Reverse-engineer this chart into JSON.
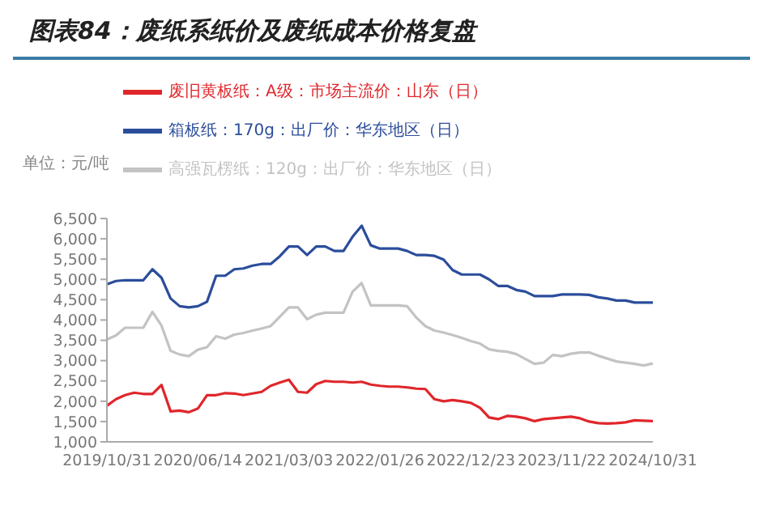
{
  "chart_data": {
    "type": "line",
    "title": "图表84：废纸系纸价及废纸成本价格复盘",
    "ylabel": "单位：元/吨",
    "categories": [
      "2019/10/31",
      null,
      null,
      null,
      null,
      null,
      null,
      null,
      null,
      null,
      "2020/06/14",
      null,
      null,
      null,
      null,
      null,
      null,
      null,
      null,
      null,
      "2021/03/03",
      null,
      null,
      null,
      null,
      null,
      null,
      null,
      null,
      null,
      "2022/01/26",
      null,
      null,
      null,
      null,
      null,
      null,
      null,
      null,
      null,
      "2022/12/23",
      null,
      null,
      null,
      null,
      null,
      null,
      null,
      null,
      null,
      "2023/11/22",
      null,
      null,
      null,
      null,
      null,
      null,
      null,
      null,
      null,
      "2024/10/31"
    ],
    "series": [
      {
        "name": "废旧黄板纸：A级：市场主流价：山东（日）",
        "color": "#e0262b",
        "values": [
          1890,
          2050,
          2150,
          2210,
          2180,
          2180,
          2400,
          1750,
          1770,
          1730,
          1820,
          2150,
          2150,
          2200,
          2190,
          2150,
          2190,
          2230,
          2380,
          2460,
          2530,
          2230,
          2210,
          2420,
          2500,
          2480,
          2480,
          2460,
          2480,
          2410,
          2380,
          2360,
          2360,
          2340,
          2310,
          2300,
          2050,
          2000,
          2030,
          2000,
          1960,
          1840,
          1600,
          1560,
          1640,
          1620,
          1580,
          1510,
          1560,
          1580,
          1600,
          1620,
          1580,
          1500,
          1460,
          1450,
          1460,
          1480,
          1530,
          1520,
          1510
        ]
      },
      {
        "name": "箱板纸：170g：出厂价：华东地区（日）",
        "color": "#2b4d9b",
        "values": [
          4880,
          4960,
          4980,
          4980,
          4980,
          5250,
          5040,
          4530,
          4340,
          4310,
          4340,
          4450,
          5090,
          5090,
          5250,
          5270,
          5340,
          5380,
          5380,
          5570,
          5810,
          5810,
          5600,
          5810,
          5810,
          5700,
          5700,
          6050,
          6320,
          5840,
          5760,
          5760,
          5760,
          5700,
          5600,
          5600,
          5580,
          5490,
          5230,
          5120,
          5120,
          5120,
          5000,
          4840,
          4840,
          4740,
          4700,
          4590,
          4590,
          4590,
          4630,
          4630,
          4630,
          4620,
          4560,
          4530,
          4480,
          4480,
          4430,
          4430,
          4430
        ]
      },
      {
        "name": "高强瓦楞纸：120g：出厂价：华东地区（日）",
        "color": "#c3c3c3",
        "values": [
          3520,
          3620,
          3810,
          3810,
          3810,
          4200,
          3860,
          3240,
          3150,
          3110,
          3270,
          3330,
          3600,
          3540,
          3640,
          3680,
          3740,
          3790,
          3850,
          4080,
          4310,
          4310,
          4020,
          4130,
          4180,
          4180,
          4180,
          4700,
          4910,
          4360,
          4360,
          4360,
          4360,
          4340,
          4060,
          3850,
          3740,
          3690,
          3630,
          3560,
          3480,
          3420,
          3280,
          3240,
          3220,
          3160,
          3040,
          2920,
          2950,
          3140,
          3110,
          3170,
          3200,
          3200,
          3120,
          3050,
          2980,
          2950,
          2920,
          2880,
          2930
        ]
      }
    ],
    "ylim": [
      1000,
      6500
    ],
    "yticks": [
      {
        "value": 1000,
        "label": "1,000"
      },
      {
        "value": 1500,
        "label": "1,500"
      },
      {
        "value": 2000,
        "label": "2,000"
      },
      {
        "value": 2500,
        "label": "2,500"
      },
      {
        "value": 3000,
        "label": "3,000"
      },
      {
        "value": 3500,
        "label": "3,500"
      },
      {
        "value": 4000,
        "label": "4,000"
      },
      {
        "value": 4500,
        "label": "4,500"
      },
      {
        "value": 5000,
        "label": "5,000"
      },
      {
        "value": 5500,
        "label": "5,500"
      },
      {
        "value": 6000,
        "label": "6,000"
      },
      {
        "value": 6500,
        "label": "6,500"
      }
    ],
    "grid": false,
    "legend": "top left",
    "marker": "none",
    "line_style": "solid"
  }
}
